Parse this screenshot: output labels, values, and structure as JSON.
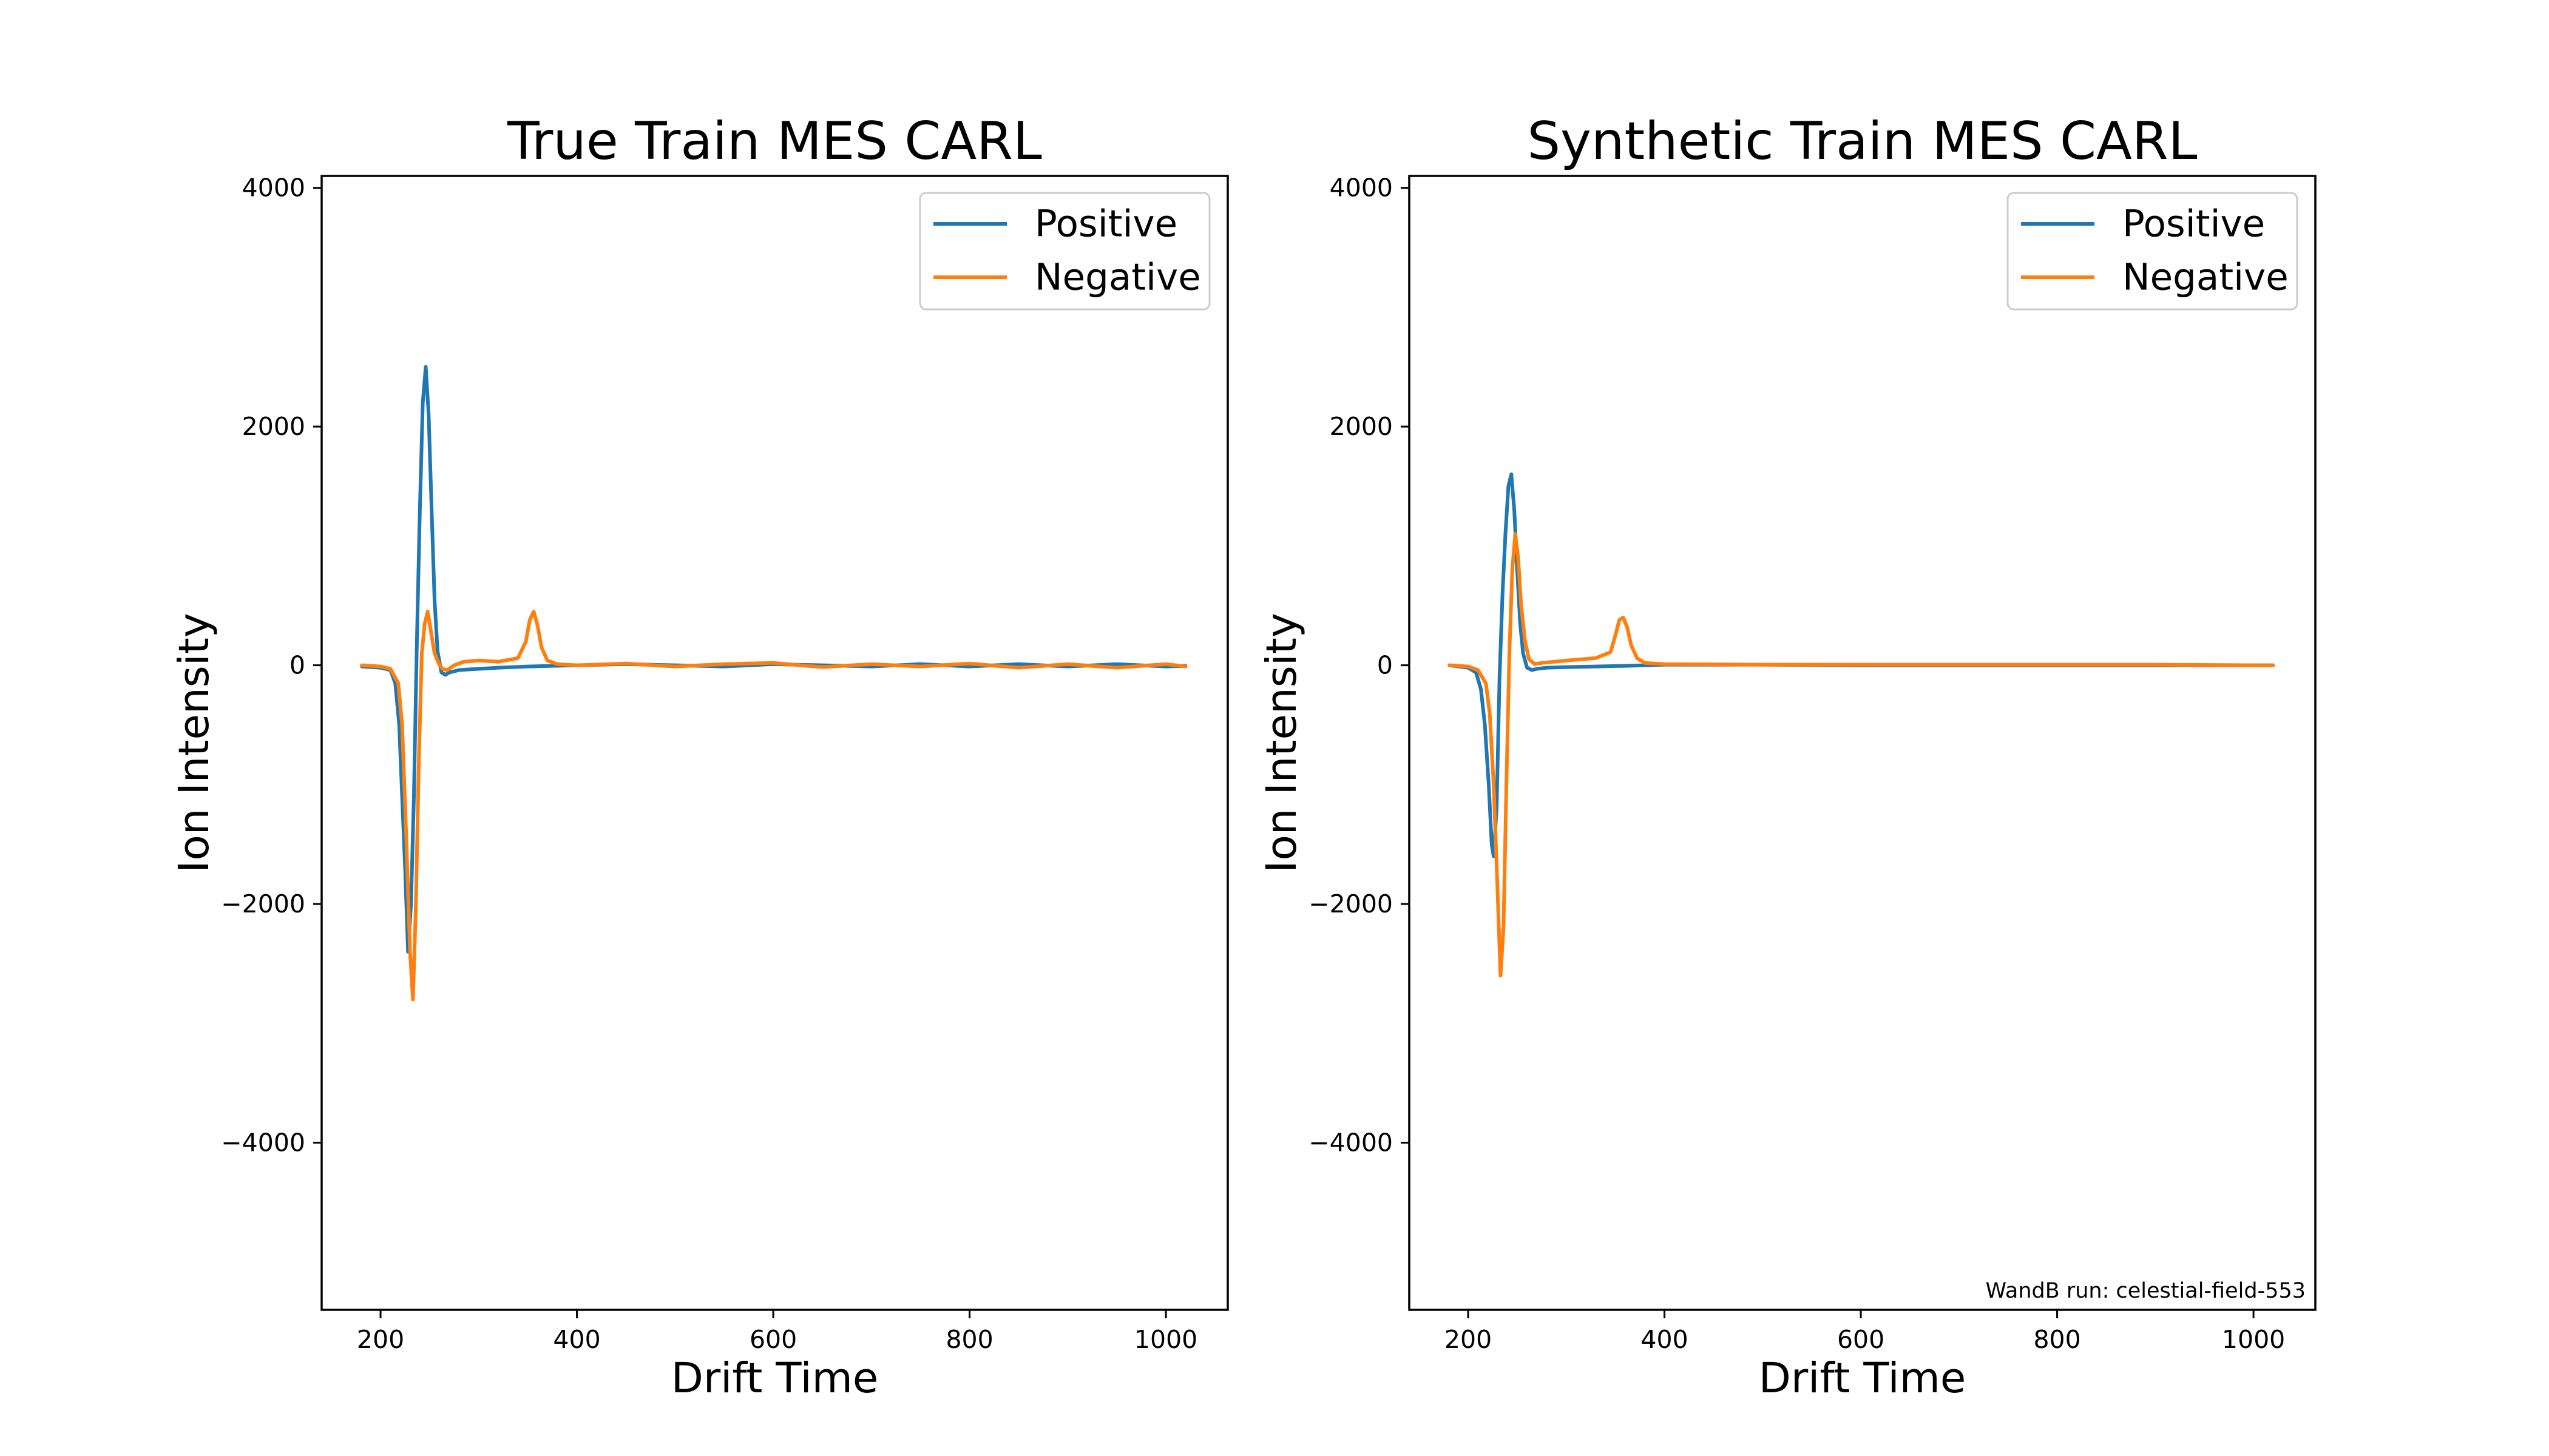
{
  "chart_data": [
    {
      "type": "line",
      "title": "True Train MES CARL",
      "xlabel": "Drift Time",
      "ylabel": "Ion Intensity",
      "xlim": [
        140,
        1063
      ],
      "ylim": [
        -5400,
        4100
      ],
      "xticks": [
        200,
        400,
        600,
        800,
        1000
      ],
      "yticks": [
        4000,
        2000,
        0,
        -2000,
        -4000
      ],
      "ytick_labels": [
        "4000",
        "2000",
        "0",
        "−2000",
        "−4000"
      ],
      "legend": {
        "position": "top-right"
      },
      "annotation": "",
      "series": [
        {
          "name": "Positive",
          "color": "#1f77b4",
          "x": [
            181,
            200,
            210,
            215,
            219,
            222,
            225,
            228,
            231,
            234,
            237,
            240,
            243,
            246,
            249,
            252,
            255,
            258,
            262,
            266,
            270,
            280,
            300,
            320,
            350,
            400,
            450,
            500,
            550,
            600,
            650,
            700,
            750,
            800,
            850,
            900,
            950,
            1000,
            1020
          ],
          "y": [
            -10,
            -20,
            -40,
            -150,
            -500,
            -1100,
            -1700,
            -2400,
            -2000,
            -1100,
            200,
            1300,
            2200,
            2500,
            2100,
            1300,
            550,
            120,
            -60,
            -80,
            -60,
            -40,
            -30,
            -20,
            -10,
            0,
            10,
            0,
            -10,
            10,
            0,
            -10,
            10,
            -10,
            10,
            -10,
            10,
            -10,
            -5
          ]
        },
        {
          "name": "Negative",
          "color": "#ff7f0e",
          "x": [
            181,
            200,
            210,
            218,
            222,
            226,
            230,
            233,
            236,
            239,
            242,
            245,
            248,
            251,
            255,
            259,
            263,
            268,
            275,
            285,
            300,
            320,
            340,
            348,
            352,
            356,
            360,
            364,
            370,
            380,
            400,
            450,
            500,
            550,
            600,
            650,
            700,
            750,
            800,
            850,
            900,
            950,
            1000,
            1020
          ],
          "y": [
            0,
            -10,
            -30,
            -150,
            -500,
            -1400,
            -2400,
            -2800,
            -2000,
            -800,
            100,
            350,
            450,
            300,
            100,
            20,
            -30,
            -40,
            0,
            30,
            40,
            30,
            60,
            200,
            380,
            450,
            330,
            150,
            40,
            10,
            0,
            15,
            -10,
            10,
            20,
            -15,
            10,
            -10,
            15,
            -20,
            10,
            -20,
            10,
            -10
          ]
        }
      ]
    },
    {
      "type": "line",
      "title": "Synthetic Train MES CARL",
      "xlabel": "Drift Time",
      "ylabel": "Ion Intensity",
      "xlim": [
        140,
        1063
      ],
      "ylim": [
        -5400,
        4100
      ],
      "xticks": [
        200,
        400,
        600,
        800,
        1000
      ],
      "yticks": [
        4000,
        2000,
        0,
        -2000,
        -4000
      ],
      "ytick_labels": [
        "4000",
        "2000",
        "0",
        "−2000",
        "−4000"
      ],
      "legend": {
        "position": "top-right"
      },
      "annotation": "WandB run: celestial-field-553",
      "series": [
        {
          "name": "Positive",
          "color": "#1f77b4",
          "x": [
            181,
            200,
            208,
            213,
            217,
            221,
            224,
            226,
            229,
            232,
            235,
            238,
            241,
            244,
            247,
            250,
            253,
            256,
            260,
            265,
            270,
            280,
            300,
            330,
            360,
            380,
            400,
            500,
            600,
            700,
            800,
            900,
            1000,
            1020
          ],
          "y": [
            0,
            -20,
            -60,
            -200,
            -500,
            -1000,
            -1500,
            -1600,
            -1200,
            -100,
            600,
            1100,
            1500,
            1600,
            1300,
            800,
            350,
            100,
            -20,
            -40,
            -30,
            -20,
            -15,
            -10,
            -5,
            0,
            5,
            5,
            0,
            0,
            0,
            0,
            0,
            0
          ]
        },
        {
          "name": "Negative",
          "color": "#ff7f0e",
          "x": [
            181,
            200,
            210,
            218,
            222,
            226,
            230,
            233,
            236,
            239,
            242,
            245,
            248,
            251,
            254,
            258,
            262,
            268,
            275,
            300,
            330,
            345,
            350,
            354,
            358,
            362,
            366,
            372,
            380,
            400,
            500,
            600,
            700,
            800,
            900,
            1000,
            1020
          ],
          "y": [
            0,
            -10,
            -40,
            -150,
            -400,
            -1000,
            -1900,
            -2600,
            -2200,
            -1000,
            100,
            800,
            1100,
            900,
            500,
            200,
            50,
            10,
            20,
            40,
            60,
            110,
            250,
            380,
            400,
            320,
            170,
            60,
            20,
            10,
            5,
            5,
            5,
            5,
            5,
            0,
            0
          ]
        }
      ]
    }
  ]
}
